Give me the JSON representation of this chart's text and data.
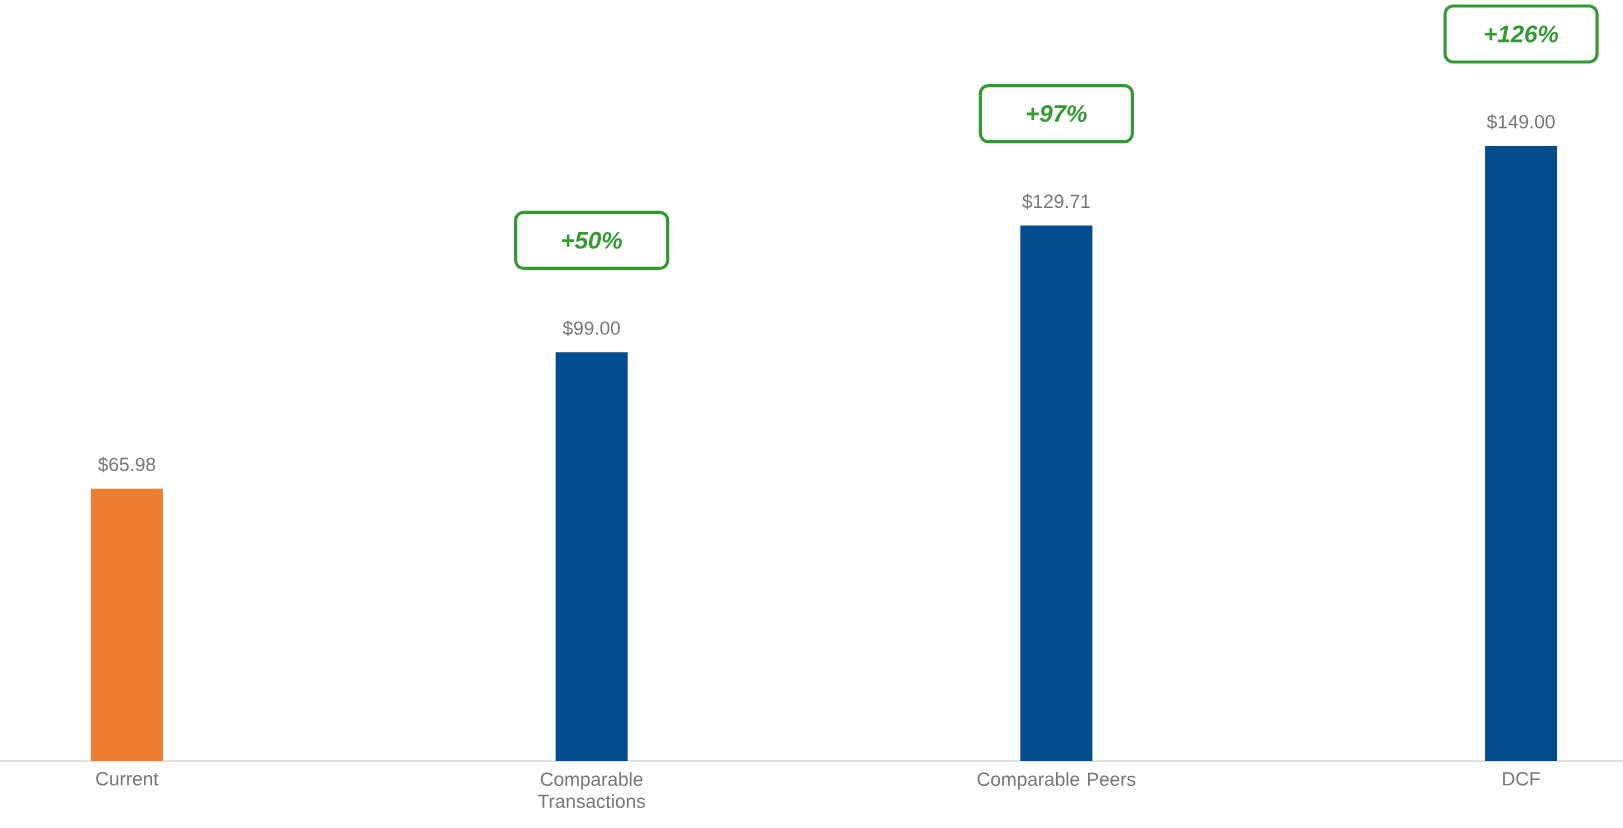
{
  "chart_data": {
    "type": "bar",
    "categories": [
      "Current",
      "Comparable Transactions",
      "Comparable Peers",
      "DCF"
    ],
    "values": [
      65.98,
      99.0,
      129.71,
      149.0
    ],
    "colors": [
      "#ed7d31",
      "#004c8c",
      "#004c8c",
      "#004c8c"
    ],
    "value_labels": [
      "$65.98",
      "$99.00",
      "$129.71",
      "$149.00"
    ],
    "annotations": [
      "+50%",
      "+97%",
      "+126%"
    ]
  }
}
